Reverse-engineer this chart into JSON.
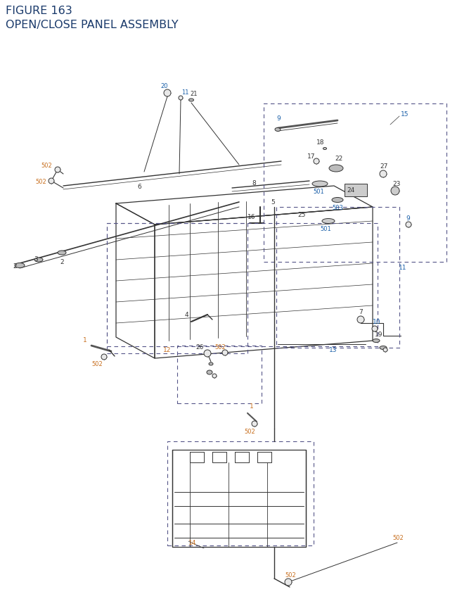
{
  "title_line1": "FIGURE 163",
  "title_line2": "OPEN/CLOSE PANEL ASSEMBLY",
  "title_color": "#1a3a6b",
  "title_fontsize": 11.5,
  "bg_color": "#ffffff",
  "lc_blue": "#1a5fa8",
  "lc_orange": "#c87020",
  "lc_black": "#333333",
  "lc_line": "#333333",
  "lc_dash": "#555588",
  "fig_width": 6.4,
  "fig_height": 8.62
}
